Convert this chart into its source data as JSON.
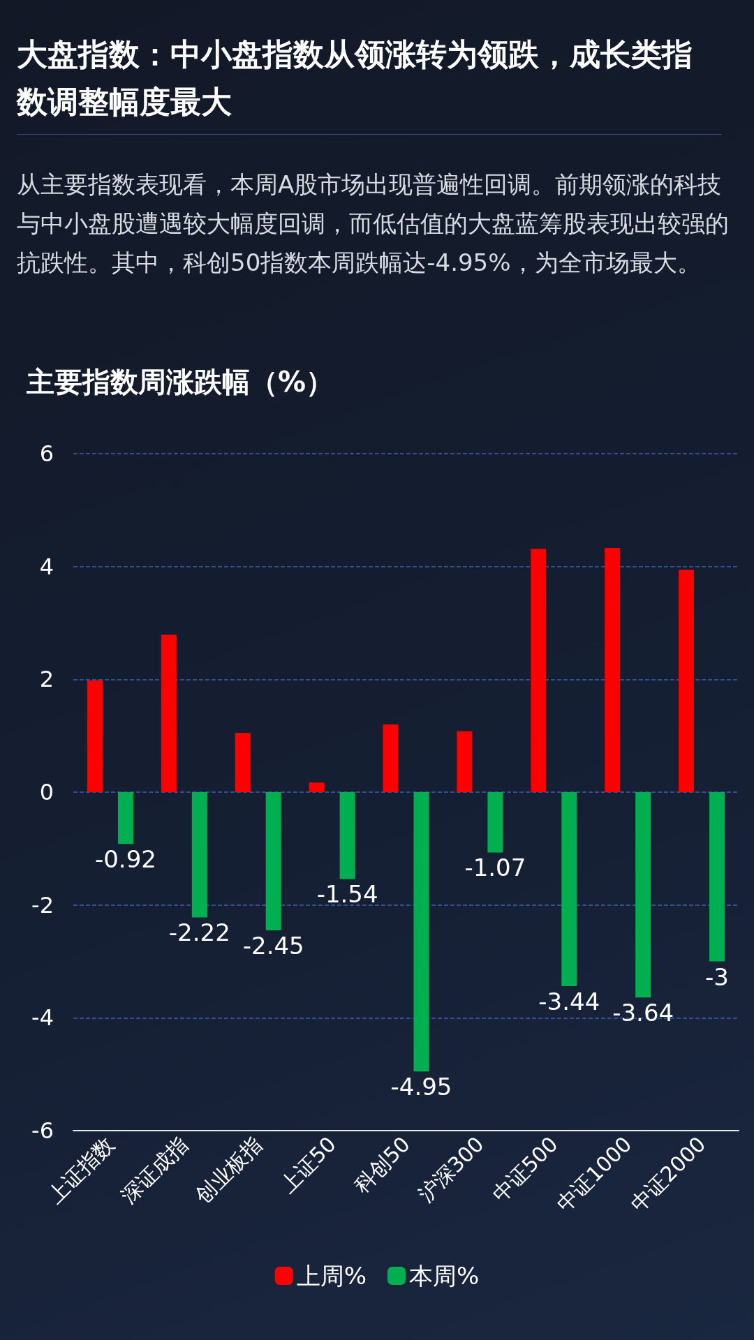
{
  "chart_data": {
    "type": "bar",
    "title": "大盘指数：中小盘指数从领涨转为领跌，成长类指数调整幅度最大",
    "subtitle": "从主要指数表现看，本周A股市场出现普遍性回调。前期领涨的科技与中小盘股遭遇较大幅度回调，而低估值的大盘蓝筹股表现出较强的抗跌性。其中，科创50指数本周跌幅达-4.95%，为全市场最大。",
    "ylabel": "主要指数周涨跌幅（%）",
    "categories": [
      "上证指数",
      "深证成指",
      "创业板指",
      "上证50",
      "科创50",
      "沪深300",
      "中证500",
      "中证1000",
      "中证2000"
    ],
    "series": [
      {
        "name": "上周%",
        "color": "#ff0000",
        "values": [
          1.98,
          2.79,
          1.05,
          0.17,
          1.2,
          1.08,
          4.31,
          4.33,
          3.94
        ]
      },
      {
        "name": "本周%",
        "color": "#00b050",
        "values": [
          -0.92,
          -2.22,
          -2.45,
          -1.54,
          -4.95,
          -1.07,
          -3.44,
          -3.64,
          -3
        ],
        "value_labels": [
          "-0.92",
          "-2.22",
          "-2.45",
          "-1.54",
          "-4.95",
          "-1.07",
          "-3.44",
          "-3.64",
          "-3"
        ]
      }
    ],
    "ylim": [
      -6,
      6
    ],
    "yticks": [
      -6,
      -4,
      -2,
      0,
      2,
      4,
      6
    ],
    "grid": "y",
    "legend": "bottom"
  }
}
